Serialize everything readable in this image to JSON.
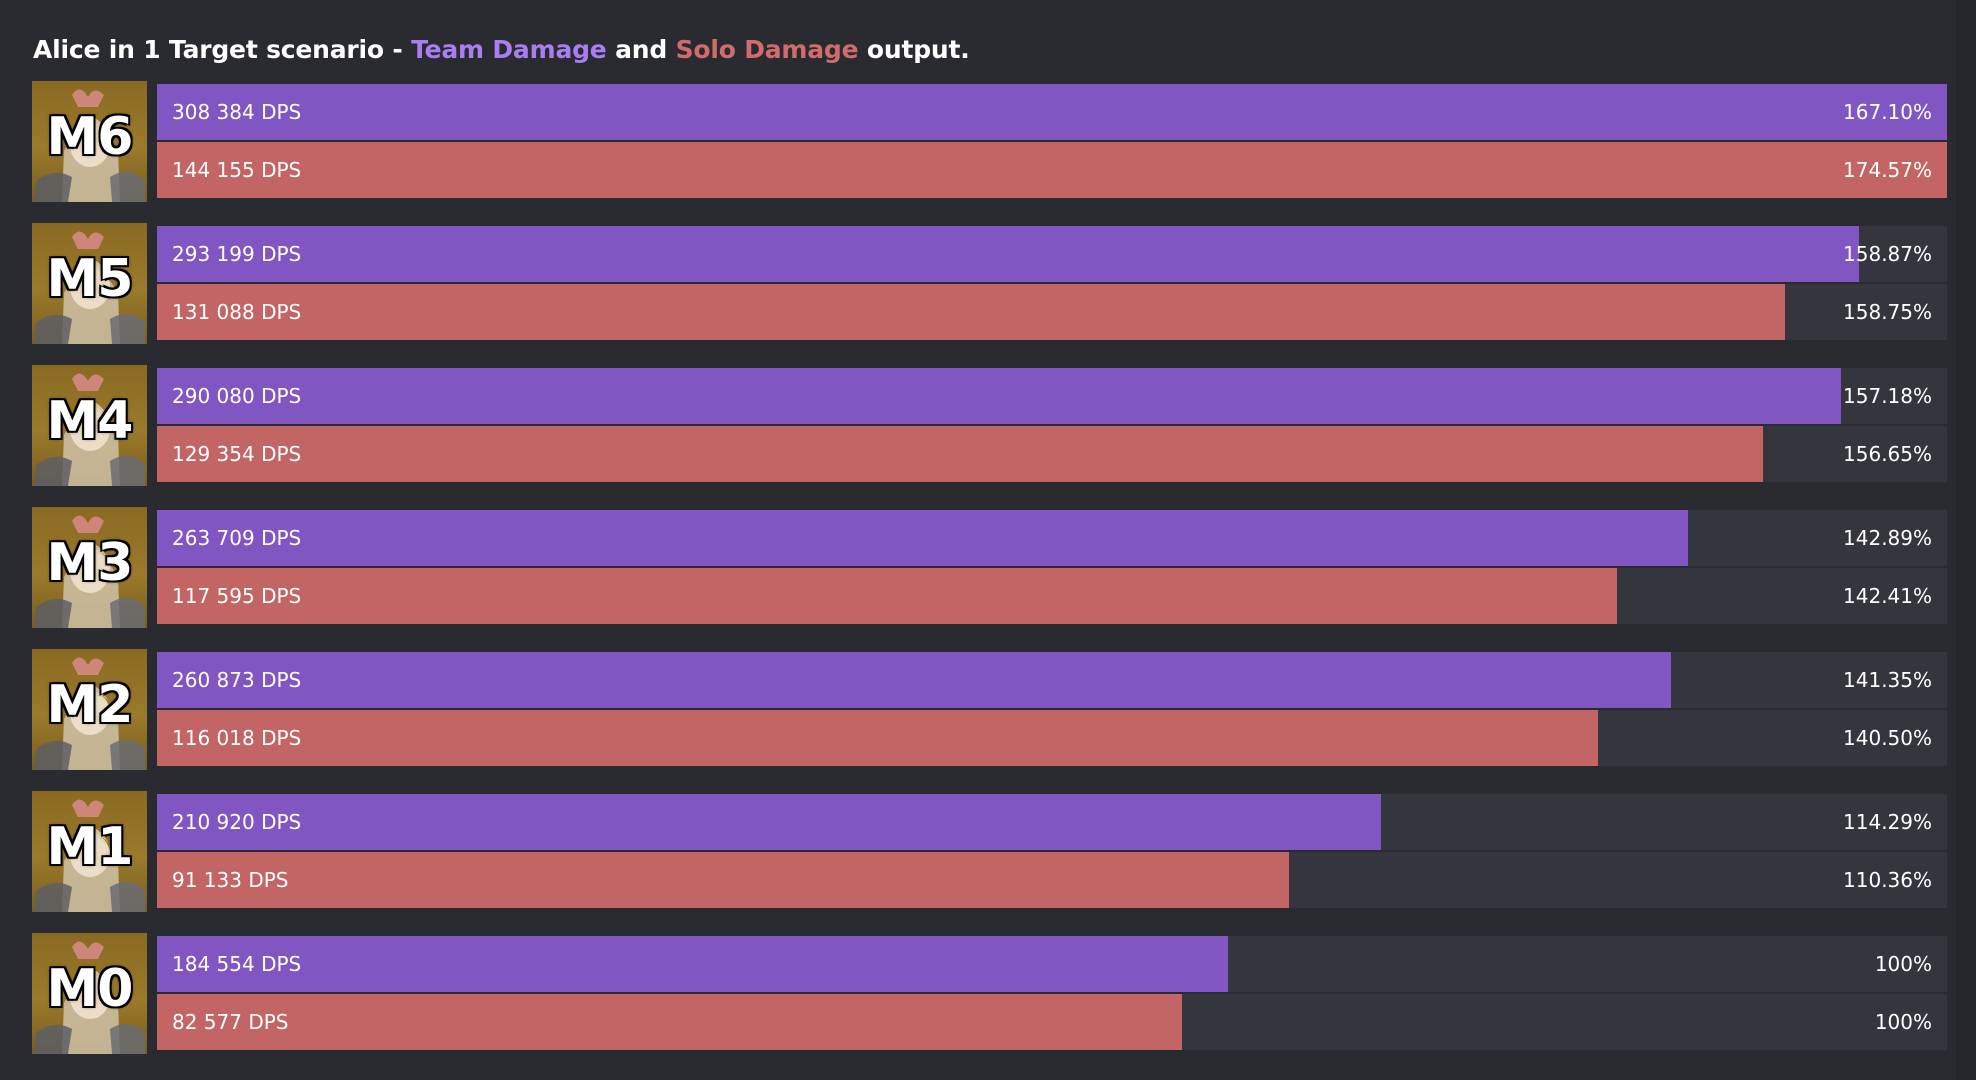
{
  "title": {
    "prefix": "Alice in 1 Target scenario - ",
    "team_label": "Team Damage",
    "joiner": " and ",
    "solo_label": "Solo Damage",
    "suffix": " output."
  },
  "colors": {
    "team": "#8156c2",
    "solo": "#c46565",
    "team_text": "#a97ef0",
    "solo_text": "#d16c6c",
    "track": "#35363d",
    "background": "#2a2b31"
  },
  "chart_data": {
    "type": "bar",
    "orientation": "horizontal",
    "title": "Alice in 1 Target scenario - Team Damage and Solo Damage output.",
    "categories": [
      "M6",
      "M5",
      "M4",
      "M3",
      "M2",
      "M1",
      "M0"
    ],
    "series": [
      {
        "name": "Team Damage",
        "values": [
          308384,
          293199,
          290080,
          263709,
          260873,
          210920,
          184554
        ],
        "labels": [
          "308 384 DPS",
          "293 199 DPS",
          "290 080 DPS",
          "263 709 DPS",
          "260 873 DPS",
          "210 920 DPS",
          "184 554 DPS"
        ],
        "percents": [
          "167.10%",
          "158.87%",
          "157.18%",
          "142.89%",
          "141.35%",
          "114.29%",
          "100%"
        ]
      },
      {
        "name": "Solo Damage",
        "values": [
          144155,
          131088,
          129354,
          117595,
          116018,
          91133,
          82577
        ],
        "labels": [
          "144 155 DPS",
          "131 088 DPS",
          "129 354 DPS",
          "117 595 DPS",
          "116 018 DPS",
          "91 133 DPS",
          "82 577 DPS"
        ],
        "percents": [
          "174.57%",
          "158.75%",
          "156.65%",
          "142.41%",
          "140.50%",
          "110.36%",
          "100%"
        ]
      }
    ],
    "xlabel": "",
    "ylabel": "",
    "legend": "in title",
    "grid": false
  }
}
